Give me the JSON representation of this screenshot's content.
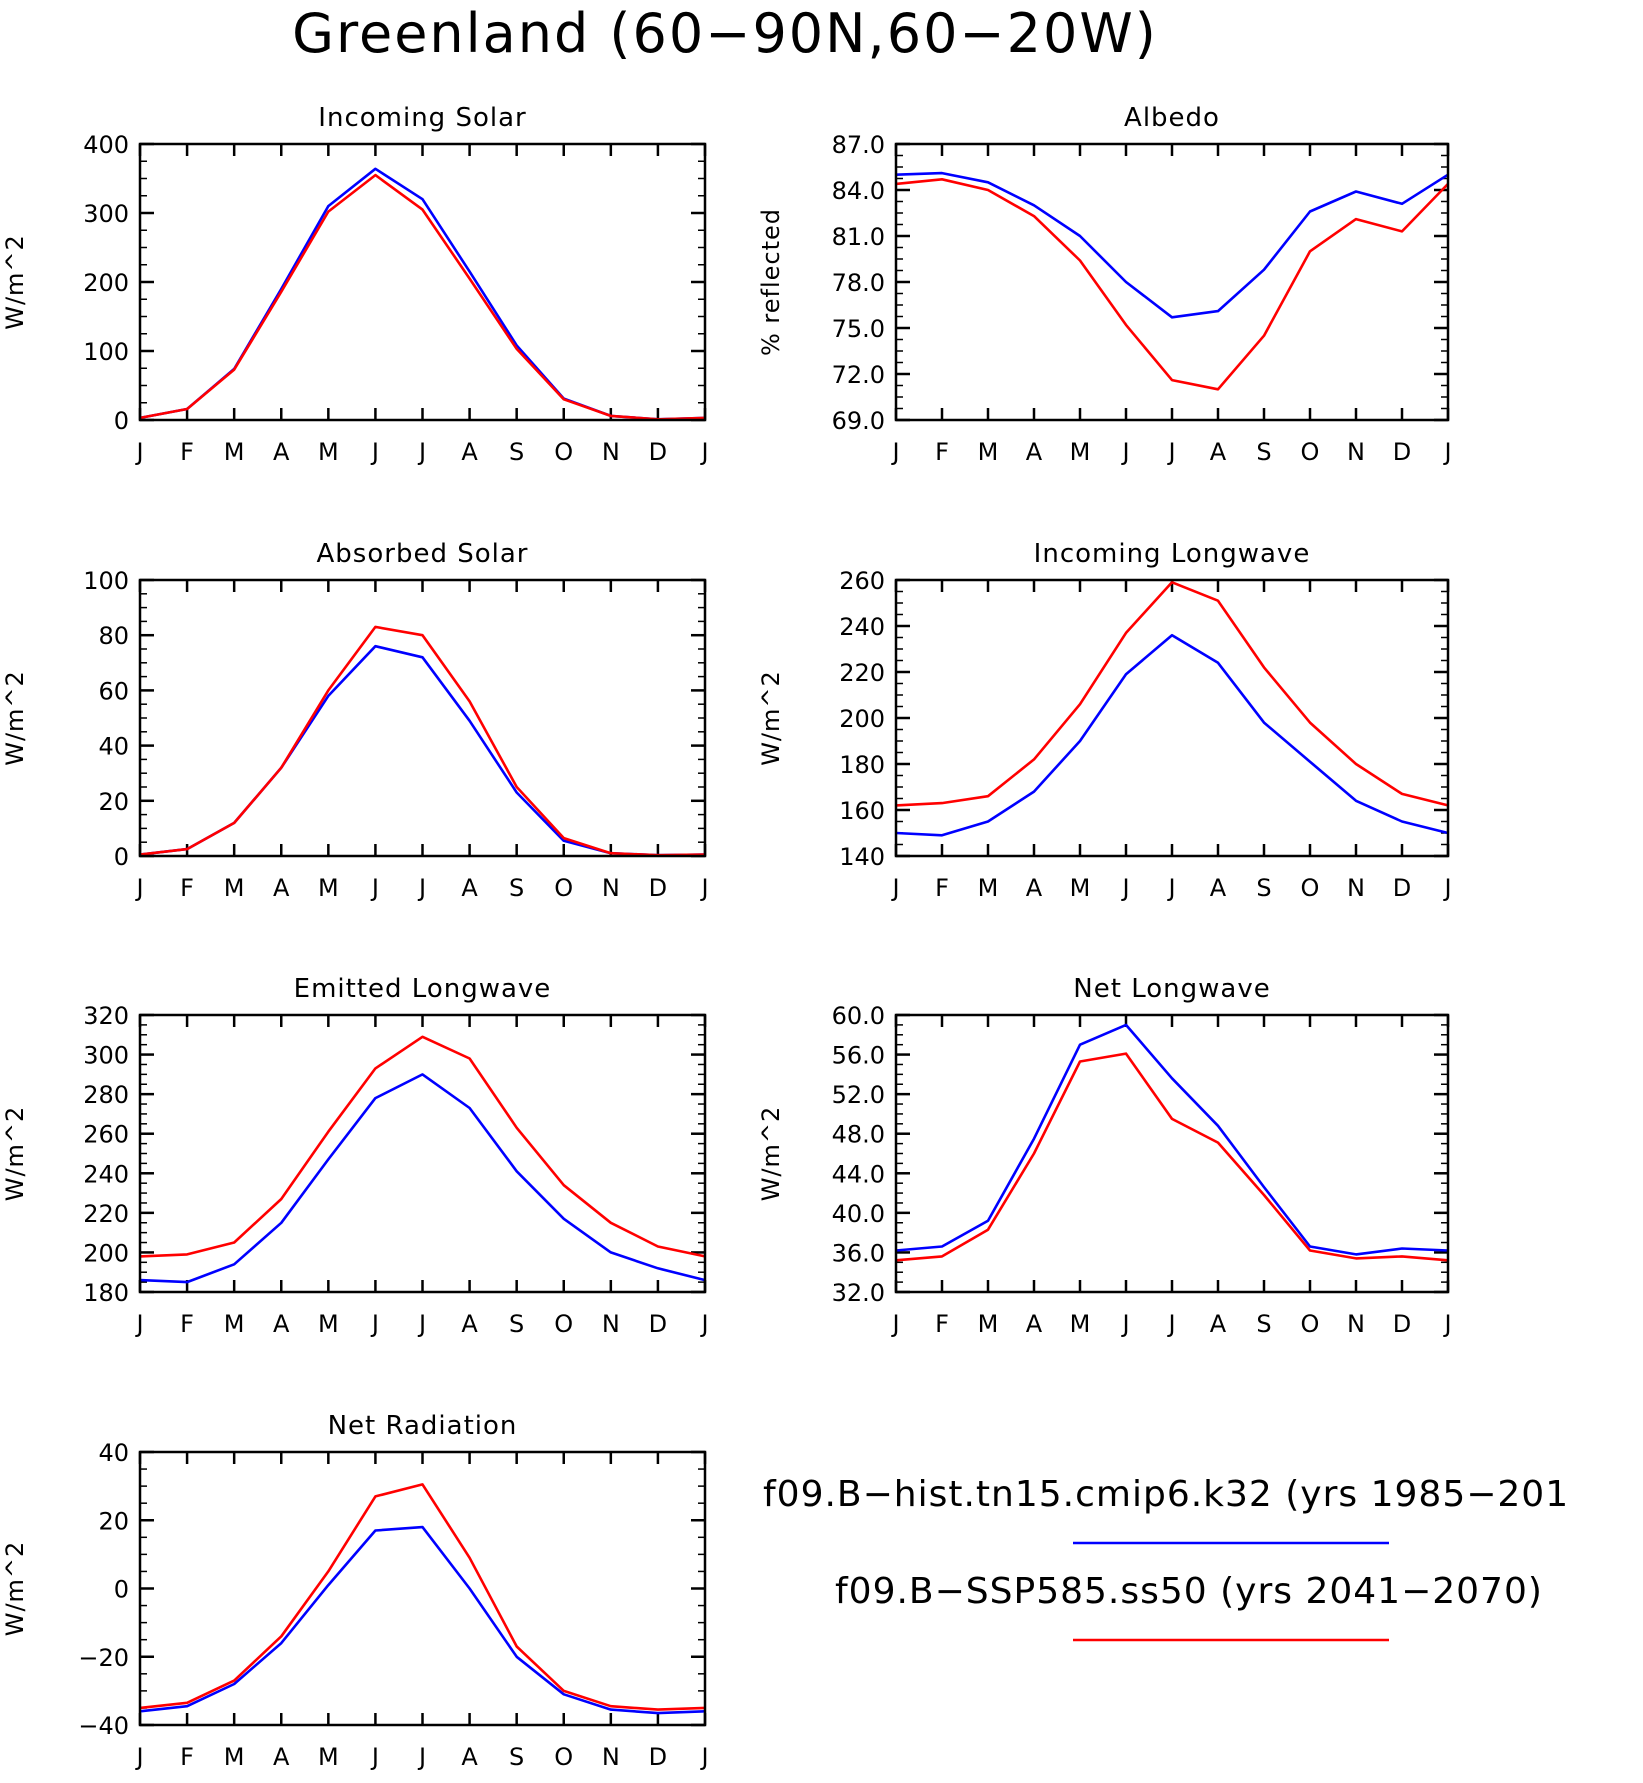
{
  "title": "Greenland (60−90N,60−20W)",
  "colors": {
    "hist": "#0000ff",
    "ssp": "#ff0000"
  },
  "legend": {
    "items": [
      {
        "label": "f09.B−hist.tn15.cmip6.k32 (yrs 1985−201",
        "color": "#0000ff"
      },
      {
        "label": "f09.B−SSP585.ss50 (yrs 2041−2070)",
        "color": "#ff0000"
      }
    ]
  },
  "chart_data": [
    {
      "type": "line",
      "title": "Incoming Solar",
      "ylabel": "W/m^2",
      "x": [
        "J",
        "F",
        "M",
        "A",
        "M",
        "J",
        "J",
        "A",
        "S",
        "O",
        "N",
        "D",
        "J"
      ],
      "ylim": [
        0,
        400
      ],
      "yticks": [
        "0",
        "100",
        "200",
        "300",
        "400"
      ],
      "series": [
        {
          "color": "#0000ff",
          "values": [
            3,
            16,
            74,
            190,
            310,
            364,
            320,
            215,
            108,
            31,
            6,
            1,
            3
          ]
        },
        {
          "color": "#ff0000",
          "values": [
            3,
            16,
            73,
            186,
            302,
            355,
            305,
            205,
            103,
            30,
            6,
            1,
            3
          ]
        }
      ]
    },
    {
      "type": "line",
      "title": "Albedo",
      "ylabel": "% reflected",
      "x": [
        "J",
        "F",
        "M",
        "A",
        "M",
        "J",
        "J",
        "A",
        "S",
        "O",
        "N",
        "D",
        "J"
      ],
      "ylim": [
        69,
        87
      ],
      "yticks": [
        "69.0",
        "72.0",
        "75.0",
        "78.0",
        "81.0",
        "84.0",
        "87.0"
      ],
      "series": [
        {
          "color": "#0000ff",
          "values": [
            85.0,
            85.1,
            84.5,
            83.0,
            81.0,
            78.0,
            75.7,
            76.1,
            78.8,
            82.6,
            83.9,
            83.1,
            85.0
          ]
        },
        {
          "color": "#ff0000",
          "values": [
            84.4,
            84.7,
            84.0,
            82.3,
            79.4,
            75.2,
            71.6,
            71.0,
            74.5,
            80.0,
            82.1,
            81.3,
            84.4
          ]
        }
      ]
    },
    {
      "type": "line",
      "title": "Absorbed Solar",
      "ylabel": "W/m^2",
      "x": [
        "J",
        "F",
        "M",
        "A",
        "M",
        "J",
        "J",
        "A",
        "S",
        "O",
        "N",
        "D",
        "J"
      ],
      "ylim": [
        0,
        100
      ],
      "yticks": [
        "0",
        "20",
        "40",
        "60",
        "80",
        "100"
      ],
      "series": [
        {
          "color": "#0000ff",
          "values": [
            0.5,
            2.5,
            12,
            32,
            58,
            76,
            72,
            49,
            23,
            5.5,
            1,
            0.3,
            0.5
          ]
        },
        {
          "color": "#ff0000",
          "values": [
            0.5,
            2.5,
            12,
            32,
            60,
            83,
            80,
            56,
            25,
            6.5,
            1,
            0.3,
            0.5
          ]
        }
      ]
    },
    {
      "type": "line",
      "title": "Incoming Longwave",
      "ylabel": "W/m^2",
      "x": [
        "J",
        "F",
        "M",
        "A",
        "M",
        "J",
        "J",
        "A",
        "S",
        "O",
        "N",
        "D",
        "J"
      ],
      "ylim": [
        140,
        260
      ],
      "yticks": [
        "140",
        "160",
        "180",
        "200",
        "220",
        "240",
        "260"
      ],
      "series": [
        {
          "color": "#0000ff",
          "values": [
            150,
            149,
            155,
            168,
            190,
            219,
            236,
            224,
            198,
            181,
            164,
            155,
            150
          ]
        },
        {
          "color": "#ff0000",
          "values": [
            162,
            163,
            166,
            182,
            206,
            237,
            259,
            251,
            222,
            198,
            180,
            167,
            162
          ]
        }
      ]
    },
    {
      "type": "line",
      "title": "Emitted Longwave",
      "ylabel": "W/m^2",
      "x": [
        "J",
        "F",
        "M",
        "A",
        "M",
        "J",
        "J",
        "A",
        "S",
        "O",
        "N",
        "D",
        "J"
      ],
      "ylim": [
        180,
        320
      ],
      "yticks": [
        "180",
        "200",
        "220",
        "240",
        "260",
        "280",
        "300",
        "320"
      ],
      "series": [
        {
          "color": "#0000ff",
          "values": [
            186,
            185,
            194,
            215,
            247,
            278,
            290,
            273,
            241,
            217,
            200,
            192,
            186
          ]
        },
        {
          "color": "#ff0000",
          "values": [
            198,
            199,
            205,
            227,
            261,
            293,
            309,
            298,
            263,
            234,
            215,
            203,
            198
          ]
        }
      ]
    },
    {
      "type": "line",
      "title": "Net Longwave",
      "ylabel": "W/m^2",
      "x": [
        "J",
        "F",
        "M",
        "A",
        "M",
        "J",
        "J",
        "A",
        "S",
        "O",
        "N",
        "D",
        "J"
      ],
      "ylim": [
        32,
        60
      ],
      "yticks": [
        "32.0",
        "36.0",
        "40.0",
        "44.0",
        "48.0",
        "52.0",
        "56.0",
        "60.0"
      ],
      "series": [
        {
          "color": "#0000ff",
          "values": [
            36.2,
            36.6,
            39.2,
            47.5,
            57.0,
            59.0,
            53.6,
            48.8,
            42.6,
            36.6,
            35.8,
            36.4,
            36.2
          ]
        },
        {
          "color": "#ff0000",
          "values": [
            35.2,
            35.6,
            38.3,
            46.0,
            55.3,
            56.1,
            49.5,
            47.1,
            41.8,
            36.2,
            35.4,
            35.6,
            35.2
          ]
        }
      ]
    },
    {
      "type": "line",
      "title": "Net Radiation",
      "ylabel": "W/m^2",
      "x": [
        "J",
        "F",
        "M",
        "A",
        "M",
        "J",
        "J",
        "A",
        "S",
        "O",
        "N",
        "D",
        "J"
      ],
      "ylim": [
        -40,
        40
      ],
      "yticks": [
        "−40",
        "−20",
        "0",
        "20",
        "40"
      ],
      "series": [
        {
          "color": "#0000ff",
          "values": [
            -36,
            -34.5,
            -28,
            -16,
            1,
            17,
            18,
            0,
            -20,
            -31,
            -35.5,
            -36.5,
            -36
          ]
        },
        {
          "color": "#ff0000",
          "values": [
            -35,
            -33.5,
            -27,
            -14,
            5,
            27,
            30.5,
            9,
            -17,
            -30,
            -34.5,
            -35.5,
            -35
          ]
        }
      ]
    }
  ]
}
